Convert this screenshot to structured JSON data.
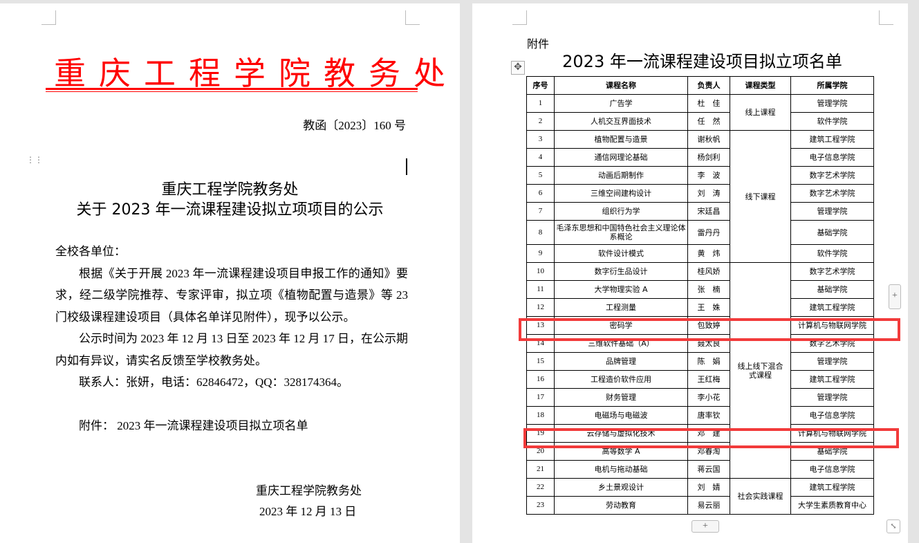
{
  "left_page": {
    "org_title": "重庆工程学院教务处",
    "doc_number": "教函〔2023〕160 号",
    "heading_line1": "重庆工程学院教务处",
    "heading_line2": "关于 2023 年一流课程建设拟立项项目的公示",
    "salutation": "全校各单位：",
    "paragraph1": "根据《关于开展 2023 年一流课程建设项目申报工作的通知》要求，经二级学院推荐、专家评审，拟立项《植物配置与造景》等 23 门校级课程建设项目（具体名单详见附件），现予以公示。",
    "paragraph2": "公示时间为 2023 年 12 月 13 日至 2023 年 12 月 17 日，在公示期内如有异议，请实名反馈至学校教务处。",
    "contact": "联系人：张妍，电话：62846472，QQ：328174364。",
    "attachment": "附件： 2023 年一流课程建设项目拟立项名单",
    "signature_org": "重庆工程学院教务处",
    "signature_date": "2023 年 12 月 13 日"
  },
  "right_page": {
    "attachment_label": "附件",
    "title": "2023 年一流课程建设项目拟立项名单",
    "table": {
      "headers": [
        "序号",
        "课程名称",
        "负责人",
        "课程类型",
        "所属学院"
      ],
      "rows": [
        [
          "1",
          "广告学",
          "杜　佳",
          "线上课程",
          "管理学院"
        ],
        [
          "2",
          "人机交互界面技术",
          "任　然",
          "线上课程",
          "软件学院"
        ],
        [
          "3",
          "植物配置与造景",
          "谢秋帆",
          "线下课程",
          "建筑工程学院"
        ],
        [
          "4",
          "通信网理论基础",
          "杨剑利",
          "线下课程",
          "电子信息学院"
        ],
        [
          "5",
          "动画后期制作",
          "李　波",
          "线下课程",
          "数字艺术学院"
        ],
        [
          "6",
          "三维空间建构设计",
          "刘　涛",
          "线下课程",
          "数字艺术学院"
        ],
        [
          "7",
          "组织行为学",
          "宋廷昌",
          "线下课程",
          "管理学院"
        ],
        [
          "8",
          "毛泽东思想和中国特色社会主义理论体系概论",
          "雷丹丹",
          "线下课程",
          "基础学院"
        ],
        [
          "9",
          "软件设计模式",
          "黄　炜",
          "线下课程",
          "软件学院"
        ],
        [
          "10",
          "数字衍生品设计",
          "桂风娇",
          "线上线下混合式课程",
          "数字艺术学院"
        ],
        [
          "11",
          "大学物理实验 A",
          "张　楠",
          "线上线下混合式课程",
          "基础学院"
        ],
        [
          "12",
          "工程测量",
          "王　姝",
          "线上线下混合式课程",
          "建筑工程学院"
        ],
        [
          "13",
          "密码学",
          "包致婷",
          "线上线下混合式课程",
          "计算机与物联网学院"
        ],
        [
          "14",
          "三维软件基础（A）",
          "聂太良",
          "线上线下混合式课程",
          "数字艺术学院"
        ],
        [
          "15",
          "品牌管理",
          "陈　娟",
          "线上线下混合式课程",
          "管理学院"
        ],
        [
          "16",
          "工程造价软件应用",
          "王红梅",
          "线上线下混合式课程",
          "建筑工程学院"
        ],
        [
          "17",
          "财务管理",
          "李小花",
          "线上线下混合式课程",
          "管理学院"
        ],
        [
          "18",
          "电磁场与电磁波",
          "唐率钦",
          "线上线下混合式课程",
          "电子信息学院"
        ],
        [
          "19",
          "云存储与虚拟化技术",
          "邓　建",
          "线上线下混合式课程",
          "计算机与物联网学院"
        ],
        [
          "20",
          "高等数学 A",
          "邓春淘",
          "线上线下混合式课程",
          "基础学院"
        ],
        [
          "21",
          "电机与拖动基础",
          "蒋云国",
          "线上线下混合式课程",
          "电子信息学院"
        ],
        [
          "22",
          "乡土景观设计",
          "刘　婧",
          "社会实践课程",
          "建筑工程学院"
        ],
        [
          "23",
          "劳动教育",
          "易云丽",
          "社会实践课程",
          "大学生素质教育中心"
        ]
      ],
      "highlighted_rows": [
        "13",
        "19"
      ]
    },
    "highlight_color": "#f23b3b"
  },
  "colors": {
    "letterhead_red": "#ff0000",
    "background": "#e4e4e4"
  },
  "controls": {
    "add_row": "+",
    "add_column": "+",
    "resize": "⤡",
    "move": "✥"
  }
}
